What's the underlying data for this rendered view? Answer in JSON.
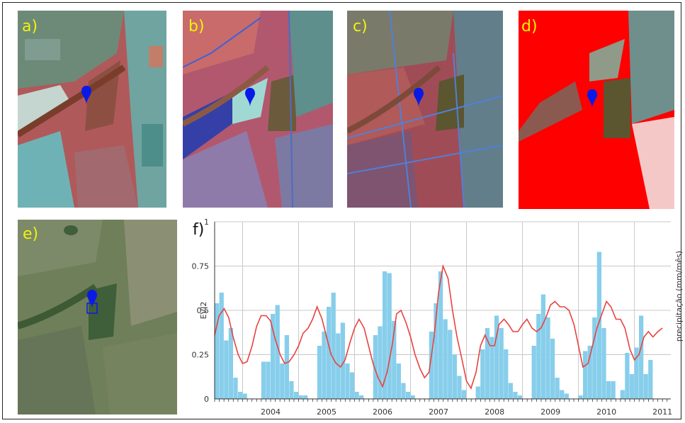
{
  "panels": {
    "a": "a)",
    "b": "b)",
    "c": "c)",
    "d": "d)",
    "e": "e)",
    "f": "f)"
  },
  "colors": {
    "label": "#f2f20a",
    "bars": "#87ceeb",
    "evi2_line": "#e8423f",
    "marker": "#0a1ae6",
    "mask_red": "#ff0000",
    "mask_pink": "#f5c8c8"
  },
  "icons": [
    "map-pin-icon",
    "map-pin-icon",
    "map-pin-icon",
    "map-pin-icon",
    "map-pin-icon"
  ],
  "chart_data": {
    "type": "bar",
    "ylabel": "EVI2",
    "y2label": "precipitação (mm/mês)",
    "ylim": [
      0,
      1
    ],
    "yticks": [
      "0",
      "0.25",
      "0.5",
      "0.75",
      "1"
    ],
    "xlim": [
      2003.5,
      2011.65
    ],
    "xticks": [
      "2004",
      "2005",
      "2006",
      "2007",
      "2008",
      "2009",
      "2010",
      "2011"
    ],
    "grid": true,
    "series": [
      {
        "type": "bar",
        "x_start": 2003.5,
        "step": 0.0833,
        "values": [
          0.54,
          0.6,
          0.33,
          0.4,
          0.12,
          0.04,
          0.03,
          0.0,
          0.0,
          0.0,
          0.21,
          0.21,
          0.48,
          0.53,
          0.2,
          0.36,
          0.1,
          0.04,
          0.02,
          0.02,
          0.0,
          0.0,
          0.3,
          0.38,
          0.52,
          0.6,
          0.37,
          0.43,
          0.2,
          0.15,
          0.04,
          0.02,
          0.0,
          0.0,
          0.36,
          0.41,
          0.72,
          0.71,
          0.44,
          0.2,
          0.09,
          0.04,
          0.02,
          0.0,
          0.0,
          0.0,
          0.38,
          0.54,
          0.72,
          0.45,
          0.39,
          0.25,
          0.13,
          0.05,
          0.0,
          0.0,
          0.07,
          0.28,
          0.4,
          0.35,
          0.47,
          0.4,
          0.28,
          0.09,
          0.04,
          0.02,
          0.0,
          0.0,
          0.3,
          0.48,
          0.59,
          0.46,
          0.34,
          0.12,
          0.05,
          0.03,
          0.0,
          0.0,
          0.02,
          0.27,
          0.3,
          0.46,
          0.83,
          0.4,
          0.1,
          0.1,
          0.0,
          0.05,
          0.26,
          0.14,
          0.29,
          0.47,
          0.14,
          0.22
        ]
      },
      {
        "type": "line",
        "points": [
          [
            2003.5,
            0.36
          ],
          [
            2003.58,
            0.47
          ],
          [
            2003.67,
            0.51
          ],
          [
            2003.75,
            0.46
          ],
          [
            2003.83,
            0.35
          ],
          [
            2003.92,
            0.25
          ],
          [
            2004.0,
            0.2
          ],
          [
            2004.08,
            0.21
          ],
          [
            2004.17,
            0.3
          ],
          [
            2004.25,
            0.41
          ],
          [
            2004.33,
            0.47
          ],
          [
            2004.42,
            0.47
          ],
          [
            2004.5,
            0.44
          ],
          [
            2004.58,
            0.34
          ],
          [
            2004.67,
            0.25
          ],
          [
            2004.75,
            0.2
          ],
          [
            2004.83,
            0.21
          ],
          [
            2004.92,
            0.25
          ],
          [
            2005.0,
            0.3
          ],
          [
            2005.08,
            0.37
          ],
          [
            2005.17,
            0.4
          ],
          [
            2005.25,
            0.45
          ],
          [
            2005.33,
            0.52
          ],
          [
            2005.42,
            0.45
          ],
          [
            2005.5,
            0.35
          ],
          [
            2005.58,
            0.25
          ],
          [
            2005.67,
            0.2
          ],
          [
            2005.75,
            0.18
          ],
          [
            2005.83,
            0.22
          ],
          [
            2005.92,
            0.32
          ],
          [
            2006.0,
            0.4
          ],
          [
            2006.08,
            0.45
          ],
          [
            2006.17,
            0.4
          ],
          [
            2006.25,
            0.3
          ],
          [
            2006.33,
            0.2
          ],
          [
            2006.42,
            0.12
          ],
          [
            2006.5,
            0.07
          ],
          [
            2006.58,
            0.15
          ],
          [
            2006.67,
            0.3
          ],
          [
            2006.75,
            0.48
          ],
          [
            2006.83,
            0.5
          ],
          [
            2006.92,
            0.43
          ],
          [
            2007.0,
            0.35
          ],
          [
            2007.08,
            0.25
          ],
          [
            2007.17,
            0.17
          ],
          [
            2007.25,
            0.12
          ],
          [
            2007.33,
            0.15
          ],
          [
            2007.42,
            0.35
          ],
          [
            2007.5,
            0.6
          ],
          [
            2007.58,
            0.75
          ],
          [
            2007.67,
            0.68
          ],
          [
            2007.75,
            0.5
          ],
          [
            2007.83,
            0.35
          ],
          [
            2007.92,
            0.22
          ],
          [
            2008.0,
            0.1
          ],
          [
            2008.08,
            0.06
          ],
          [
            2008.17,
            0.15
          ],
          [
            2008.25,
            0.3
          ],
          [
            2008.33,
            0.36
          ],
          [
            2008.42,
            0.3
          ],
          [
            2008.5,
            0.3
          ],
          [
            2008.58,
            0.42
          ],
          [
            2008.67,
            0.45
          ],
          [
            2008.75,
            0.42
          ],
          [
            2008.83,
            0.38
          ],
          [
            2008.92,
            0.38
          ],
          [
            2009.0,
            0.42
          ],
          [
            2009.08,
            0.45
          ],
          [
            2009.17,
            0.4
          ],
          [
            2009.25,
            0.38
          ],
          [
            2009.33,
            0.4
          ],
          [
            2009.42,
            0.46
          ],
          [
            2009.5,
            0.53
          ],
          [
            2009.58,
            0.55
          ],
          [
            2009.67,
            0.52
          ],
          [
            2009.75,
            0.52
          ],
          [
            2009.83,
            0.5
          ],
          [
            2009.92,
            0.42
          ],
          [
            2010.0,
            0.3
          ],
          [
            2010.08,
            0.18
          ],
          [
            2010.17,
            0.2
          ],
          [
            2010.25,
            0.3
          ],
          [
            2010.33,
            0.4
          ],
          [
            2010.42,
            0.48
          ],
          [
            2010.5,
            0.55
          ],
          [
            2010.58,
            0.52
          ],
          [
            2010.67,
            0.45
          ],
          [
            2010.75,
            0.45
          ],
          [
            2010.83,
            0.4
          ],
          [
            2010.92,
            0.28
          ],
          [
            2011.0,
            0.22
          ],
          [
            2011.08,
            0.25
          ],
          [
            2011.17,
            0.35
          ],
          [
            2011.25,
            0.38
          ],
          [
            2011.33,
            0.35
          ],
          [
            2011.42,
            0.38
          ],
          [
            2011.5,
            0.4
          ]
        ]
      }
    ]
  }
}
